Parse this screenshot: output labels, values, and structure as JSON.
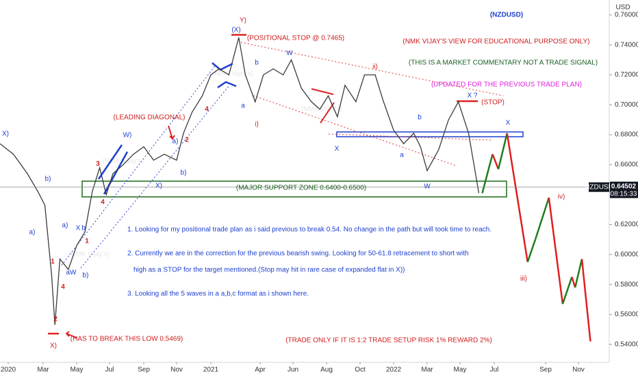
{
  "chart_data": {
    "type": "line",
    "symbol_currency": "USD",
    "x": [
      -0.5,
      0.3,
      1.1,
      1.7,
      2.1,
      2.5,
      2.7,
      3.0,
      3.5,
      4,
      4.5,
      4.95,
      5.4,
      5.8,
      6.2,
      6.8,
      7.4,
      8,
      8.6,
      9.25,
      10,
      10.4,
      10.9,
      11.5,
      12,
      12.5,
      13.1,
      13.7,
      14.1,
      14.7,
      15.2,
      15.8,
      16.4,
      16.9,
      17.5,
      18.1,
      18.6,
      19.1,
      19.65,
      20.1,
      20.75,
      21.4,
      22.35,
      23.1,
      24,
      24.6,
      25.2,
      25.6,
      26,
      26.7,
      27.3,
      27.9,
      28.5,
      29.1
    ],
    "values": [
      0.674,
      0.667,
      0.654,
      0.642,
      0.633,
      0.587,
      0.553,
      0.597,
      0.59,
      0.606,
      0.615,
      0.642,
      0.658,
      0.64,
      0.654,
      0.66,
      0.667,
      0.672,
      0.663,
      0.667,
      0.663,
      0.681,
      0.695,
      0.706,
      0.72,
      0.724,
      0.72,
      0.745,
      0.72,
      0.702,
      0.72,
      0.724,
      0.72,
      0.73,
      0.711,
      0.702,
      0.697,
      0.706,
      0.692,
      0.713,
      0.702,
      0.72,
      0.72,
      0.702,
      0.683,
      0.674,
      0.681,
      0.672,
      0.656,
      0.67,
      0.69,
      0.702,
      0.681,
      0.641
    ],
    "color": "#3a3a3a",
    "projection": {
      "x": [
        29.3,
        29.9,
        30.16,
        30.5,
        31.3,
        31.6,
        32.2,
        33.04,
        33.6,
        33.8,
        34.2,
        34.7
      ],
      "values": [
        0.641,
        0.667,
        0.657,
        0.681,
        0.595,
        0.61,
        0.638,
        0.567,
        0.585,
        0.578,
        0.597,
        0.542
      ],
      "up_color": "#1e7d1e",
      "down_color": "#e01e1e"
    },
    "price_tag": {
      "symbol": "NZDUSD",
      "value": 0.64502,
      "timer": "08:15:33"
    },
    "xlim": [
      -0.5,
      35.8
    ],
    "xticks": [
      {
        "value": 0,
        "label": "2020"
      },
      {
        "value": 2,
        "label": "Mar"
      },
      {
        "value": 4,
        "label": "May"
      },
      {
        "value": 6,
        "label": "Jul"
      },
      {
        "value": 8,
        "label": "Sep"
      },
      {
        "value": 10,
        "label": "Nov"
      },
      {
        "value": 12,
        "label": "2021"
      },
      {
        "value": 15,
        "label": "Apr"
      },
      {
        "value": 17,
        "label": "Jun"
      },
      {
        "value": 19,
        "label": "Aug"
      },
      {
        "value": 21,
        "label": "Oct"
      },
      {
        "value": 24,
        "label": "2022"
      },
      {
        "value": 26,
        "label": "Mar"
      },
      {
        "value": 28,
        "label": "May"
      },
      {
        "value": 30,
        "label": "Jul"
      },
      {
        "value": 32,
        "label": "Sep"
      },
      {
        "value": 34,
        "label": "Nov"
      }
    ],
    "ylim": [
      0.528,
      0.77
    ],
    "yticks": [
      {
        "value": 0.76,
        "label": "0.76000"
      },
      {
        "value": 0.74,
        "label": "0.74000"
      },
      {
        "value": 0.72,
        "label": "0.72000"
      },
      {
        "value": 0.7,
        "label": "0.70000"
      },
      {
        "value": 0.68,
        "label": "0.68000"
      },
      {
        "value": 0.66,
        "label": "0.66000"
      },
      {
        "value": 0.62,
        "label": "0.62000"
      },
      {
        "value": 0.6,
        "label": "0.60000"
      },
      {
        "value": 0.58,
        "label": "0.58000"
      },
      {
        "value": 0.56,
        "label": "0.56000"
      },
      {
        "value": 0.54,
        "label": "0.54000"
      }
    ],
    "annotations": [
      "(NZDUSD)",
      "(NMK VIJAY'S VIEW FOR EDUCATIONAL PURPOSE ONLY)",
      "(THIS IS A MARKET COMMENTARY NOT A TRADE SIGNAL)",
      "(UPDATED FOR THE PREVIOUS TRADE PLAN)",
      "(POSITIONAL STOP @ 0.7465)",
      "(STOP)",
      "(LEADING DIAGONAL)",
      "(MAJOR SUPPORT ZONE 0.6400-0.6500)",
      "(HAS TO BREAK THIS LOW 0.5469)",
      "(TRADE ONLY IF IT IS 1:2 TRADE SETUP RISK 1% REWARD 2%)",
      "1. Looking for my positional trade plan as i said previous to break 0.54. No change in the path but will took time to reach.",
      "2. Currently we are in the correction for the previous bearish swing. Looking for 50-61.8 retracement to short with",
      "high as a STOP for the target mentioned.(Stop may hit in rare case of expanded flat in X))",
      "3. Looking all the 5 waves in a a,b,c format as i shown here.",
      "Y)",
      "(X)",
      "W",
      "ii)",
      "X ?",
      "X",
      "b",
      "X",
      "a",
      "W",
      "i)",
      "a",
      "b",
      "X)",
      "b)",
      "a)",
      "X)",
      "b)",
      "a)",
      "W)",
      "2",
      "4",
      "3",
      "4",
      "1",
      "2",
      "4",
      "X)",
      "b)",
      "aW",
      "iv)",
      "iii)",
      "1",
      "a)",
      "X",
      "b"
    ],
    "watermarks": [
      "(NMK Vijay's)",
      "(NMK Vijay's)",
      "(NMK Vijay's)",
      "(NMK Vijay's)"
    ]
  }
}
